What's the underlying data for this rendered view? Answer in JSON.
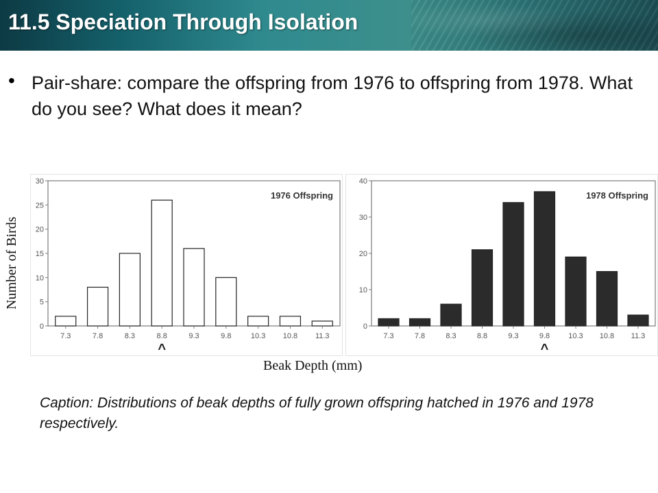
{
  "header": {
    "title": "11.5 Speciation Through Isolation"
  },
  "bullet": {
    "symbol": "•",
    "text": "Pair-share: compare the offspring from 1976 to offspring from 1978. What do you see? What does it mean?"
  },
  "axes": {
    "ylabel": "Number of Birds",
    "xlabel": "Beak Depth (mm)"
  },
  "caption": "Caption: Distributions of beak depths of fully grown offspring hatched in 1976 and 1978 respectively.",
  "chart_data": [
    {
      "type": "bar",
      "title": "1976 Offspring",
      "categories": [
        "7.3",
        "7.8",
        "8.3",
        "8.8",
        "9.3",
        "9.8",
        "10.3",
        "10.8",
        "11.3"
      ],
      "values": [
        2,
        8,
        15,
        26,
        16,
        10,
        2,
        2,
        1
      ],
      "ylim": [
        0,
        30
      ],
      "yticks": [
        0,
        5,
        10,
        15,
        20,
        25,
        30
      ],
      "bar_color": "#ffffff",
      "marker_category": "8.8",
      "marker_symbol": "^"
    },
    {
      "type": "bar",
      "title": "1978 Offspring",
      "categories": [
        "7.3",
        "7.8",
        "8.3",
        "8.8",
        "9.3",
        "9.8",
        "10.3",
        "10.8",
        "11.3"
      ],
      "values": [
        2,
        2,
        6,
        21,
        34,
        37,
        19,
        15,
        3
      ],
      "ylim": [
        0,
        40
      ],
      "yticks": [
        0,
        10,
        20,
        30,
        40
      ],
      "bar_color": "#2b2b2b",
      "marker_category": "9.8",
      "marker_symbol": "^"
    }
  ]
}
